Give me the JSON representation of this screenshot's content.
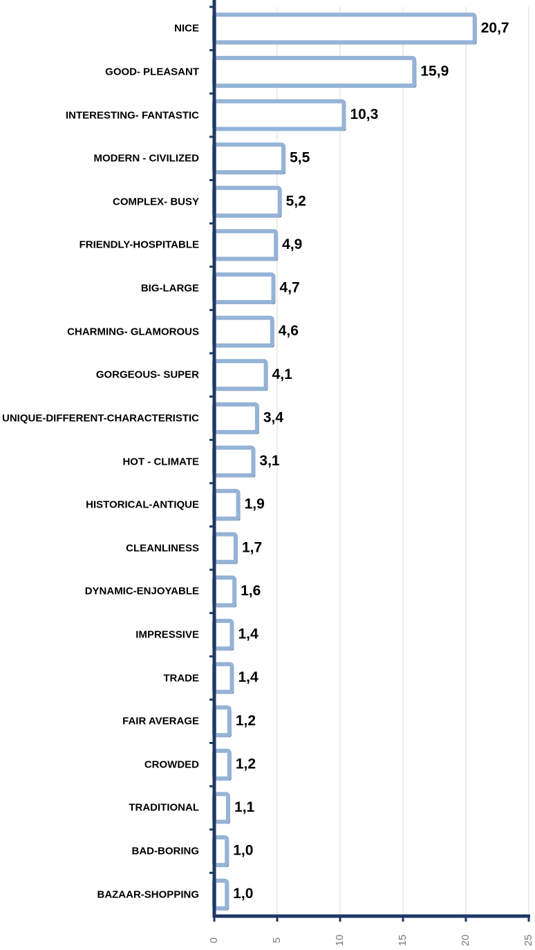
{
  "chart_data": {
    "type": "barh",
    "categories": [
      "NICE",
      "GOOD- PLEASANT",
      "INTERESTING- FANTASTIC",
      "MODERN - CIVILIZED",
      "COMPLEX- BUSY",
      "FRIENDLY-HOSPITABLE",
      "BIG-LARGE",
      "CHARMING- GLAMOROUS",
      "GORGEOUS- SUPER",
      "UNIQUE-DIFFERENT-CHARACTERISTIC",
      "HOT - CLIMATE",
      "HISTORICAL-ANTIQUE",
      "CLEANLINESS",
      "DYNAMIC-ENJOYABLE",
      "IMPRESSIVE",
      "TRADE",
      "FAIR AVERAGE",
      "CROWDED",
      "TRADITIONAL",
      "BAD-BORING",
      "BAZAAR-SHOPPING"
    ],
    "values": [
      20.7,
      15.9,
      10.3,
      5.5,
      5.2,
      4.9,
      4.7,
      4.6,
      4.1,
      3.4,
      3.1,
      1.9,
      1.7,
      1.6,
      1.4,
      1.4,
      1.2,
      1.2,
      1.1,
      1.0,
      1.0
    ],
    "value_labels": [
      "20,7",
      "15,9",
      "10,3",
      "5,5",
      "5,2",
      "4,9",
      "4,7",
      "4,6",
      "4,1",
      "3,4",
      "3,1",
      "1,9",
      "1,7",
      "1,6",
      "1,4",
      "1,4",
      "1,2",
      "1,2",
      "1,1",
      "1,0",
      "1,0"
    ],
    "color": "#95b3d7",
    "xlim": [
      0,
      25
    ],
    "xticks": [
      0,
      5,
      10,
      15,
      20,
      25
    ],
    "grid": true
  }
}
